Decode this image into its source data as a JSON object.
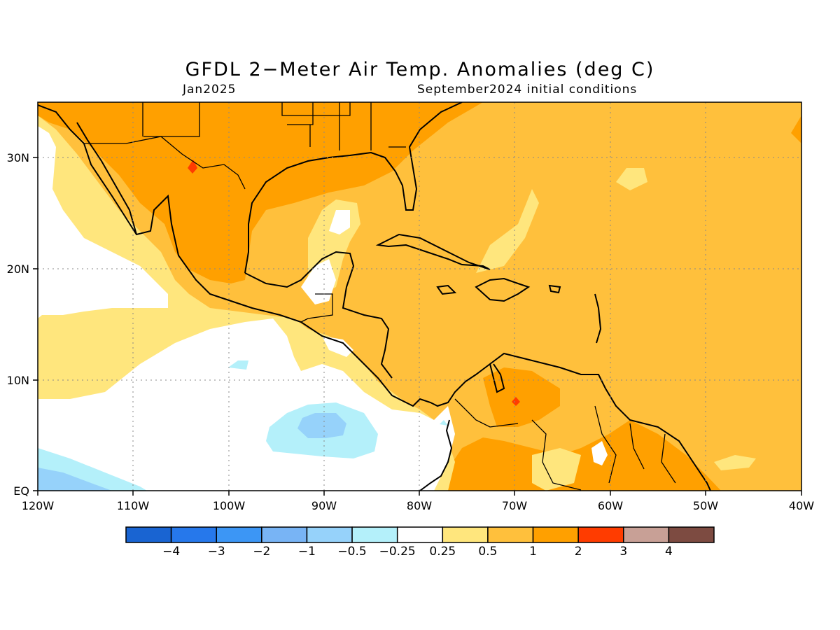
{
  "header": {
    "title": "GFDL 2−Meter Air Temp. Anomalies (deg C)",
    "period": "Jan2025",
    "initial_conditions": "September2024 initial conditions"
  },
  "map": {
    "x_ticks": [
      "120W",
      "110W",
      "100W",
      "90W",
      "80W",
      "70W",
      "60W",
      "50W",
      "40W"
    ],
    "y_ticks": [
      "EQ",
      "10N",
      "20N",
      "30N"
    ],
    "lon_range": [
      -120,
      -40
    ],
    "lat_range": [
      0,
      35
    ],
    "gridlines": true
  },
  "colorbar": {
    "colors": [
      "#1964d2",
      "#2678eb",
      "#3c96f5",
      "#78b4f5",
      "#96d2fa",
      "#b4f0fa",
      "#ffffff",
      "#ffe67d",
      "#ffc03c",
      "#ffa000",
      "#ff3c00",
      "#c8a096",
      "#7d4b41"
    ],
    "labels": [
      "−4",
      "−3",
      "−2",
      "−1",
      "−0.5",
      "−0.25",
      "0.25",
      "0.5",
      "1",
      "2",
      "3",
      "4"
    ]
  },
  "legend_colors": {
    "weak_warm": "#ffe67d",
    "warm": "#ffc03c",
    "strong_warm": "#ffa000",
    "hot": "#ff3c00",
    "cool": "#b4f0fa",
    "cooler": "#96d2fa",
    "cold": "#78b4f5"
  }
}
